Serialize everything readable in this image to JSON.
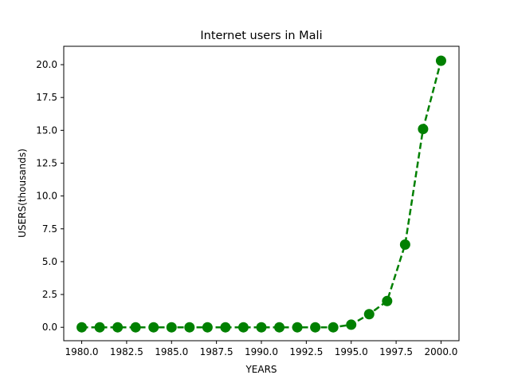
{
  "chart_data": {
    "type": "line",
    "title": "Internet users in Mali",
    "xlabel": "YEARS",
    "ylabel": "USERS(thousands)",
    "xlim": [
      1979.0,
      2001.0
    ],
    "ylim": [
      -1.02,
      21.4
    ],
    "x_ticks": [
      1980.0,
      1982.5,
      1985.0,
      1987.5,
      1990.0,
      1992.5,
      1995.0,
      1997.5,
      2000.0
    ],
    "x_tick_labels": [
      "1980.0",
      "1982.5",
      "1985.0",
      "1987.5",
      "1990.0",
      "1992.5",
      "1995.0",
      "1997.5",
      "2000.0"
    ],
    "y_ticks": [
      0.0,
      2.5,
      5.0,
      7.5,
      10.0,
      12.5,
      15.0,
      17.5,
      20.0
    ],
    "y_tick_labels": [
      "0.0",
      "2.5",
      "5.0",
      "7.5",
      "10.0",
      "12.5",
      "15.0",
      "17.5",
      "20.0"
    ],
    "grid": false,
    "series": [
      {
        "color": "#008000",
        "line_style": "dashed",
        "marker": "circle",
        "x": [
          1980,
          1981,
          1982,
          1983,
          1984,
          1985,
          1986,
          1987,
          1988,
          1989,
          1990,
          1991,
          1992,
          1993,
          1994,
          1995,
          1996,
          1997,
          1998,
          1999,
          2000
        ],
        "y": [
          0,
          0,
          0,
          0,
          0,
          0,
          0,
          0,
          0,
          0,
          0,
          0,
          0,
          0,
          0,
          0.2,
          1.0,
          2.0,
          6.3,
          15.1,
          20.3
        ]
      }
    ]
  }
}
